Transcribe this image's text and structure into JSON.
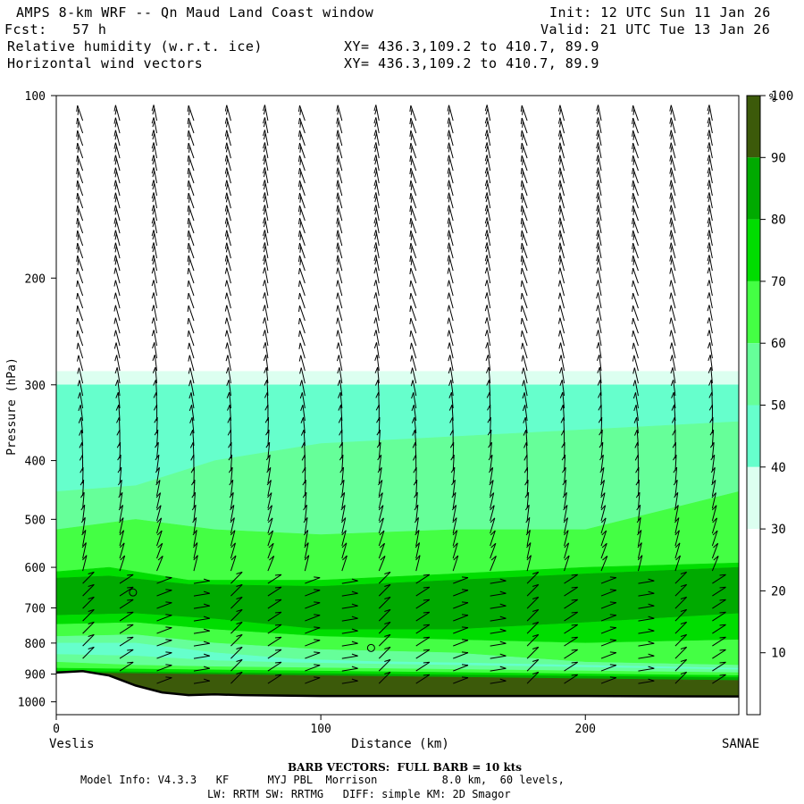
{
  "header": {
    "title": "AMPS 8-km WRF -- Qn Maud Land Coast window",
    "init": "Init: 12 UTC Sun 11 Jan 26",
    "fcst": "Fcst:   57 h",
    "valid": "Valid: 21 UTC Tue 13 Jan 26",
    "field1": "Relative humidity (w.r.t. ice)",
    "xy1": "XY= 436.3,109.2 to 410.7, 89.9",
    "field2": "Horizontal wind vectors",
    "xy2": "XY= 436.3,109.2 to 410.7, 89.9"
  },
  "footer": {
    "barb_note": "BARB VECTORS:  FULL BARB = 10 kts",
    "model_line1": "Model Info: V4.3.3   KF      MYJ PBL  Morrison          8.0 km,  60 levels,",
    "model_line2": "LW: RRTM SW: RRTMG   DIFF: simple KM: 2D Smagor"
  },
  "chart_data": {
    "type": "heatmap",
    "title": "Relative humidity (w.r.t. ice) cross-section with horizontal wind vectors",
    "xlabel": "Distance (km)",
    "ylabel": "Pressure (hPa)",
    "xlim": [
      0,
      258
    ],
    "ylim": [
      1050,
      100
    ],
    "x_ticks": [
      0,
      100,
      200
    ],
    "y_ticks": [
      100,
      200,
      300,
      400,
      500,
      600,
      700,
      800,
      900,
      1000
    ],
    "x_end_labels": {
      "left": "Veslis",
      "right": "SANAE"
    },
    "colorbar": {
      "unit": "%",
      "levels": [
        10,
        20,
        30,
        40,
        50,
        60,
        70,
        80,
        90,
        100
      ],
      "colors": [
        "#ffffff",
        "#ffffff",
        "#ffffff",
        "#dcfff0",
        "#66ffcc",
        "#66ff99",
        "#44ff44",
        "#00dd00",
        "#00aa00",
        "#3c5a0a"
      ]
    },
    "terrain_pressure": [
      [
        0,
        895
      ],
      [
        10,
        890
      ],
      [
        20,
        905
      ],
      [
        30,
        940
      ],
      [
        40,
        965
      ],
      [
        50,
        975
      ],
      [
        60,
        972
      ],
      [
        70,
        975
      ],
      [
        100,
        978
      ],
      [
        150,
        978
      ],
      [
        200,
        978
      ],
      [
        258,
        980
      ]
    ],
    "rh_bands": [
      {
        "label": "<30",
        "color": "#ffffff",
        "top": [
          [
            0,
            100
          ],
          [
            258,
            100
          ]
        ],
        "bottom": [
          [
            0,
            285
          ],
          [
            258,
            285
          ]
        ]
      },
      {
        "label": "30-40",
        "color": "#dcfff0",
        "top": [
          [
            0,
            285
          ],
          [
            258,
            285
          ]
        ],
        "bottom": [
          [
            0,
            300
          ],
          [
            258,
            300
          ]
        ]
      },
      {
        "label": "40-50",
        "color": "#66ffcc",
        "top": [
          [
            0,
            300
          ],
          [
            258,
            300
          ]
        ],
        "bottom": [
          [
            0,
            450
          ],
          [
            30,
            440
          ],
          [
            60,
            400
          ],
          [
            100,
            375
          ],
          [
            258,
            345
          ]
        ]
      },
      {
        "label": "50-60",
        "color": "#66ff99",
        "top": [
          [
            0,
            450
          ],
          [
            30,
            440
          ],
          [
            60,
            400
          ],
          [
            100,
            375
          ],
          [
            258,
            345
          ]
        ],
        "bottom": [
          [
            0,
            520
          ],
          [
            30,
            500
          ],
          [
            60,
            520
          ],
          [
            100,
            530
          ],
          [
            150,
            520
          ],
          [
            200,
            520
          ],
          [
            258,
            450
          ]
        ]
      },
      {
        "label": "60-70",
        "color": "#44ff44",
        "top": [
          [
            0,
            520
          ],
          [
            30,
            500
          ],
          [
            60,
            520
          ],
          [
            100,
            530
          ],
          [
            150,
            520
          ],
          [
            200,
            520
          ],
          [
            258,
            450
          ]
        ],
        "bottom": [
          [
            0,
            610
          ],
          [
            20,
            600
          ],
          [
            50,
            630
          ],
          [
            100,
            630
          ],
          [
            150,
            615
          ],
          [
            200,
            600
          ],
          [
            258,
            590
          ]
        ]
      },
      {
        "label": "70-80",
        "color": "#00dd00",
        "top": [
          [
            0,
            610
          ],
          [
            20,
            600
          ],
          [
            50,
            630
          ],
          [
            100,
            630
          ],
          [
            150,
            615
          ],
          [
            200,
            600
          ],
          [
            258,
            590
          ]
        ],
        "bottom": [
          [
            0,
            625
          ],
          [
            20,
            620
          ],
          [
            50,
            640
          ],
          [
            100,
            645
          ],
          [
            150,
            630
          ],
          [
            200,
            615
          ],
          [
            258,
            600
          ]
        ]
      },
      {
        "label": "80-90",
        "color": "#00aa00",
        "top": [
          [
            0,
            625
          ],
          [
            20,
            620
          ],
          [
            50,
            640
          ],
          [
            100,
            645
          ],
          [
            150,
            630
          ],
          [
            200,
            615
          ],
          [
            258,
            600
          ]
        ],
        "bottom": [
          [
            0,
            720
          ],
          [
            30,
            715
          ],
          [
            60,
            730
          ],
          [
            100,
            760
          ],
          [
            150,
            760
          ],
          [
            200,
            740
          ],
          [
            258,
            715
          ]
        ]
      },
      {
        "label": "70-80",
        "color": "#00dd00",
        "top": [
          [
            0,
            720
          ],
          [
            30,
            715
          ],
          [
            60,
            730
          ],
          [
            100,
            760
          ],
          [
            150,
            760
          ],
          [
            200,
            740
          ],
          [
            258,
            715
          ]
        ],
        "bottom": [
          [
            0,
            745
          ],
          [
            30,
            740
          ],
          [
            60,
            760
          ],
          [
            100,
            780
          ],
          [
            150,
            790
          ],
          [
            200,
            800
          ],
          [
            258,
            790
          ]
        ]
      },
      {
        "label": "60-70",
        "color": "#44ff44",
        "top": [
          [
            0,
            745
          ],
          [
            30,
            740
          ],
          [
            60,
            760
          ],
          [
            100,
            780
          ],
          [
            150,
            790
          ],
          [
            200,
            800
          ],
          [
            258,
            790
          ]
        ],
        "bottom": [
          [
            0,
            780
          ],
          [
            30,
            775
          ],
          [
            60,
            800
          ],
          [
            100,
            820
          ],
          [
            150,
            830
          ],
          [
            200,
            860
          ],
          [
            258,
            870
          ]
        ]
      },
      {
        "label": "50-60",
        "color": "#66ff99",
        "top": [
          [
            0,
            780
          ],
          [
            30,
            775
          ],
          [
            60,
            800
          ],
          [
            100,
            820
          ],
          [
            150,
            830
          ],
          [
            200,
            860
          ],
          [
            258,
            870
          ]
        ],
        "bottom": [
          [
            0,
            800
          ],
          [
            30,
            800
          ],
          [
            60,
            830
          ],
          [
            90,
            850
          ],
          [
            120,
            858
          ],
          [
            150,
            862
          ],
          [
            258,
            880
          ]
        ]
      },
      {
        "label": "40-50",
        "color": "#66ffcc",
        "top": [
          [
            0,
            800
          ],
          [
            30,
            800
          ],
          [
            60,
            830
          ],
          [
            90,
            850
          ],
          [
            120,
            858
          ],
          [
            150,
            862
          ],
          [
            258,
            880
          ]
        ],
        "bottom": [
          [
            0,
            835
          ],
          [
            30,
            840
          ],
          [
            60,
            855
          ],
          [
            90,
            862
          ],
          [
            258,
            885
          ]
        ]
      },
      {
        "label": "50-60",
        "color": "#66ff99",
        "top": [
          [
            0,
            835
          ],
          [
            30,
            840
          ],
          [
            60,
            855
          ],
          [
            90,
            862
          ],
          [
            258,
            885
          ]
        ],
        "bottom": [
          [
            0,
            860
          ],
          [
            30,
            870
          ],
          [
            60,
            875
          ],
          [
            258,
            895
          ]
        ]
      },
      {
        "label": "60-70",
        "color": "#44ff44",
        "top": [
          [
            0,
            860
          ],
          [
            30,
            870
          ],
          [
            60,
            875
          ],
          [
            258,
            895
          ]
        ],
        "bottom": [
          [
            0,
            880
          ],
          [
            258,
            905
          ]
        ]
      },
      {
        "label": "70-80",
        "color": "#00dd00",
        "top": [
          [
            0,
            880
          ],
          [
            258,
            905
          ]
        ],
        "bottom": [
          [
            0,
            890
          ],
          [
            258,
            912
          ]
        ]
      },
      {
        "label": "80-90",
        "color": "#00aa00",
        "top": [
          [
            0,
            890
          ],
          [
            258,
            912
          ]
        ],
        "bottom": [
          [
            0,
            895
          ],
          [
            258,
            922
          ]
        ]
      },
      {
        "label": ">90",
        "color": "#3c5a0a",
        "top": [
          [
            0,
            895
          ],
          [
            258,
            922
          ]
        ],
        "bottom": [
          [
            0,
            1000
          ],
          [
            258,
            1000
          ]
        ]
      }
    ],
    "markers": [
      {
        "x": 29,
        "p": 660
      },
      {
        "x": 119,
        "p": 815
      }
    ],
    "wind_barbs": {
      "columns_km": [
        10,
        24,
        38,
        52,
        66,
        80,
        94,
        108,
        122,
        136,
        150,
        164,
        178,
        192,
        206,
        220,
        234,
        248
      ]
    }
  }
}
